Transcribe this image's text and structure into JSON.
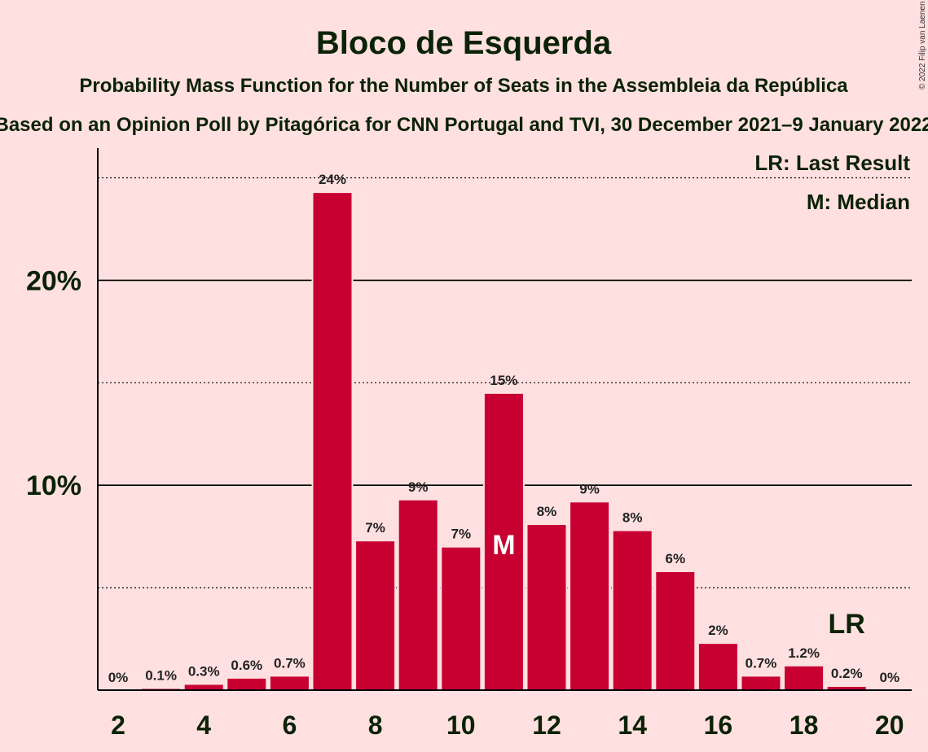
{
  "title": "Bloco de Esquerda",
  "subtitle": "Probability Mass Function for the Number of Seats in the Assembleia da República",
  "subtitle2": "Based on an Opinion Poll by Pitagórica for CNN Portugal and TVI, 30 December 2021–9 January 2022",
  "copyright": "© 2022 Filip van Laenen",
  "legend": {
    "last_result": "LR: Last Result",
    "median": "M: Median"
  },
  "colors": {
    "background": "#FFE0E0",
    "bar": "#C80032",
    "text": "#0B2206"
  },
  "chart_data": {
    "type": "bar",
    "x": [
      2,
      3,
      4,
      5,
      6,
      7,
      8,
      9,
      10,
      11,
      12,
      13,
      14,
      15,
      16,
      17,
      18,
      19,
      20
    ],
    "values": [
      0,
      0.1,
      0.3,
      0.6,
      0.7,
      24.3,
      7.3,
      9.3,
      7.0,
      14.5,
      8.1,
      9.2,
      7.8,
      5.8,
      2.3,
      0.7,
      1.2,
      0.2,
      0
    ],
    "labels": [
      "0%",
      "0.1%",
      "0.3%",
      "0.6%",
      "0.7%",
      "24%",
      "7%",
      "9%",
      "7%",
      "15%",
      "8%",
      "9%",
      "8%",
      "6%",
      "2%",
      "0.7%",
      "1.2%",
      "0.2%",
      "0%"
    ],
    "xticks": [
      "2",
      "4",
      "6",
      "8",
      "10",
      "12",
      "14",
      "16",
      "18",
      "20"
    ],
    "xtick_values": [
      2,
      4,
      6,
      8,
      10,
      12,
      14,
      16,
      18,
      20
    ],
    "yticks": [
      "10%",
      "20%"
    ],
    "ytick_values": [
      10,
      20
    ],
    "minor_gridlines": [
      5,
      15,
      25
    ],
    "ylim": [
      0,
      26.5
    ],
    "median_seats": 11,
    "median_marker": "M",
    "last_result_seats": 19,
    "last_result_marker": "LR",
    "unit": "%"
  }
}
